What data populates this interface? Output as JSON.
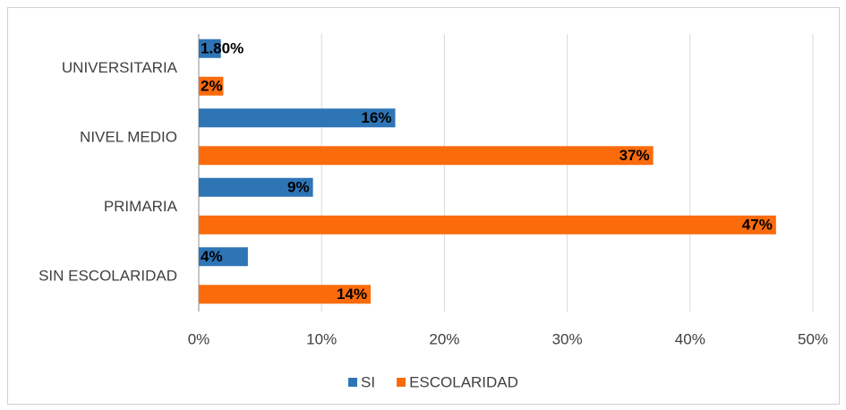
{
  "chart_data": {
    "type": "bar",
    "orientation": "horizontal",
    "categories": [
      "UNIVERSITARIA",
      "NIVEL MEDIO",
      "PRIMARIA",
      "SIN ESCOLARIDAD"
    ],
    "series": [
      {
        "name": "SI",
        "color": "#2e75b6",
        "values": [
          1.8,
          16,
          9.3,
          4
        ],
        "value_labels": [
          "1.80%",
          "16%",
          "9%",
          "4%"
        ]
      },
      {
        "name": "ESCOLARIDAD",
        "color": "#fb6b0c",
        "values": [
          2,
          37,
          47,
          14
        ],
        "value_labels": [
          "2%",
          "37%",
          "47%",
          "14%"
        ]
      }
    ],
    "xlim": [
      0,
      50
    ],
    "xticks": [
      {
        "value": 0,
        "label": "0%"
      },
      {
        "value": 10,
        "label": "10%"
      },
      {
        "value": 20,
        "label": "20%"
      },
      {
        "value": 30,
        "label": "30%"
      },
      {
        "value": 40,
        "label": "40%"
      },
      {
        "value": 50,
        "label": "50%"
      }
    ],
    "grid": true,
    "legend": "bottom"
  }
}
